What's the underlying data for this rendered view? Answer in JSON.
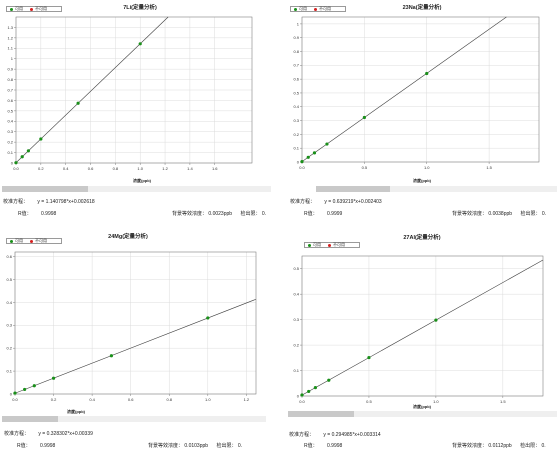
{
  "legend": {
    "usable_label": "可用",
    "unusable_label": "不可用",
    "usable_color": "#1a8f1a",
    "unusable_color": "#d42020"
  },
  "labels": {
    "equation_label": "校准方程：",
    "correlation_label": "R值：",
    "bec_label": "背景等效浓度：",
    "dl_label": "检出限："
  },
  "colors": {
    "fit_line": "#404040",
    "grid": "#dcdcdc",
    "axis": "#808080"
  },
  "panels": [
    {
      "title": "7Li(定量分析)",
      "xlabel": "浓度(ppb)",
      "equation": "y = 1.140798*x+0.002618",
      "r_value": "0.9998",
      "bec": "0.0023ppb",
      "dl": "0.",
      "scroll_fraction": 0.27
    },
    {
      "title": "23Na(定量分析)",
      "xlabel": "浓度(ppb)",
      "equation": "y = 0.639219*x+0.002403",
      "r_value": "0.9999",
      "bec": "0.0038ppb",
      "dl": "0.",
      "scroll_fraction": 0.27
    },
    {
      "title": "24Mg(定量分析)",
      "xlabel": "浓度(ppb)",
      "equation": "y = 0.328302*x+0.00339",
      "r_value": "0.9998",
      "bec": "0.0103ppb",
      "dl": "0.",
      "scroll_fraction": 0.27
    },
    {
      "title": "27Al(定量分析)",
      "xlabel": "浓度(ppb)",
      "equation": "y = 0.294985*x+0.003314",
      "r_value": "0.9998",
      "bec": "0.0112ppb",
      "dl": "0.",
      "scroll_fraction": 0.27
    }
  ],
  "chart_data": [
    {
      "type": "scatter",
      "title": "7Li(定量分析)",
      "xlabel": "浓度(ppb)",
      "ylabel": "",
      "xlim": [
        0,
        1.9
      ],
      "ylim": [
        0,
        1.4
      ],
      "xticks": [
        0,
        0.2,
        0.4,
        0.6,
        0.8,
        1.0,
        1.2,
        1.4,
        1.6
      ],
      "xtick_labels": [
        "0.0",
        "0.2",
        "0.4",
        "0.6",
        "0.8",
        "1.0",
        "1.2",
        "1.4",
        "1.6"
      ],
      "yticks": [
        0,
        0.1,
        0.2,
        0.3,
        0.4,
        0.5,
        0.6,
        0.7,
        0.8,
        0.9,
        1.0,
        1.1,
        1.2,
        1.3
      ],
      "ytick_labels": [
        "0",
        "0.1",
        "0.2",
        "0.3",
        "0.4",
        "0.5",
        "0.6",
        "0.7",
        "0.8",
        "0.9",
        "1",
        "1.1",
        "1.2",
        "1.3"
      ],
      "grid": true,
      "fit": {
        "slope": 1.140798,
        "intercept": 0.002618
      },
      "series": [
        {
          "name": "可用",
          "x": [
            0,
            0.05,
            0.1,
            0.2,
            0.5,
            1.0
          ],
          "y": [
            0.003,
            0.06,
            0.117,
            0.23,
            0.573,
            1.143
          ]
        }
      ]
    },
    {
      "type": "scatter",
      "title": "23Na(定量分析)",
      "xlabel": "浓度(ppb)",
      "ylabel": "",
      "xlim": [
        0,
        1.9
      ],
      "ylim": [
        0,
        1.05
      ],
      "xticks": [
        0,
        0.5,
        1.0,
        1.5
      ],
      "xtick_labels": [
        "0.0",
        "0.5",
        "1.0",
        "1.5"
      ],
      "yticks": [
        0,
        0.1,
        0.2,
        0.3,
        0.4,
        0.5,
        0.6,
        0.7,
        0.8,
        0.9,
        1.0
      ],
      "ytick_labels": [
        "0",
        "0.1",
        "0.2",
        "0.3",
        "0.4",
        "0.5",
        "0.6",
        "0.7",
        "0.8",
        "0.9",
        "1"
      ],
      "grid": true,
      "fit": {
        "slope": 0.639219,
        "intercept": 0.002403
      },
      "series": [
        {
          "name": "可用",
          "x": [
            0,
            0.05,
            0.1,
            0.2,
            0.5,
            1.0
          ],
          "y": [
            0.003,
            0.034,
            0.066,
            0.13,
            0.322,
            0.641
          ]
        }
      ]
    },
    {
      "type": "scatter",
      "title": "24Mg(定量分析)",
      "xlabel": "浓度(ppb)",
      "ylabel": "",
      "xlim": [
        0,
        1.25
      ],
      "ylim": [
        0,
        0.62
      ],
      "xticks": [
        0,
        0.2,
        0.4,
        0.6,
        0.8,
        1.0,
        1.2
      ],
      "xtick_labels": [
        "0.0",
        "0.2",
        "0.4",
        "0.6",
        "0.8",
        "1.0",
        "1.2"
      ],
      "yticks": [
        0,
        0.1,
        0.2,
        0.3,
        0.4,
        0.5,
        0.6
      ],
      "ytick_labels": [
        "0",
        "0.1",
        "0.2",
        "0.3",
        "0.4",
        "0.5",
        "0.6"
      ],
      "grid": true,
      "fit": {
        "slope": 0.328302,
        "intercept": 0.00339
      },
      "series": [
        {
          "name": "可用",
          "x": [
            0,
            0.05,
            0.1,
            0.2,
            0.5,
            1.0
          ],
          "y": [
            0.004,
            0.02,
            0.036,
            0.069,
            0.167,
            0.332
          ]
        }
      ]
    },
    {
      "type": "scatter",
      "title": "27Al(定量分析)",
      "xlabel": "浓度(ppb)",
      "ylabel": "",
      "xlim": [
        0,
        1.8
      ],
      "ylim": [
        0,
        0.55
      ],
      "xticks": [
        0,
        0.5,
        1.0,
        1.5
      ],
      "xtick_labels": [
        "0.0",
        "0.5",
        "1.0",
        "1.5"
      ],
      "yticks": [
        0,
        0.1,
        0.2,
        0.3,
        0.4,
        0.5
      ],
      "ytick_labels": [
        "0",
        "0.1",
        "0.2",
        "0.3",
        "0.4",
        "0.5"
      ],
      "grid": true,
      "fit": {
        "slope": 0.294985,
        "intercept": 0.003314
      },
      "series": [
        {
          "name": "可用",
          "x": [
            0,
            0.05,
            0.1,
            0.2,
            0.5,
            1.0
          ],
          "y": [
            0.004,
            0.018,
            0.033,
            0.062,
            0.151,
            0.298
          ]
        }
      ]
    }
  ]
}
